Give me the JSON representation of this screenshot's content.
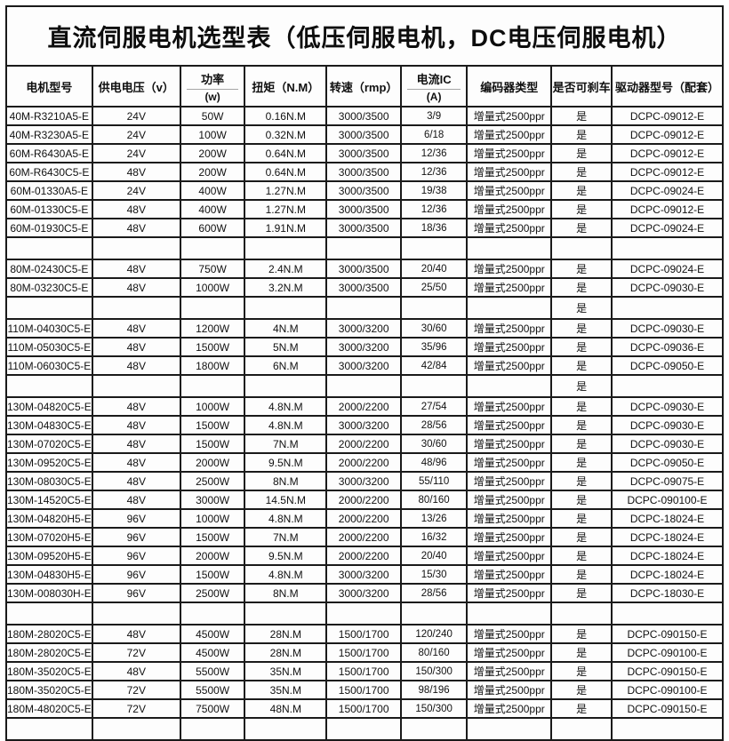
{
  "title": "直流伺服电机选型表（低压伺服电机，DC电压伺服电机）",
  "colors": {
    "border": "#1a1a1a",
    "background": "#fdfdfd",
    "text": "#141414",
    "header_divider": "#a6a6a6"
  },
  "table": {
    "columns": [
      {
        "key": "model",
        "label": "电机型号",
        "sub": null
      },
      {
        "key": "voltage",
        "label": "供电电压（v）",
        "sub": null
      },
      {
        "key": "power",
        "label": "功率",
        "sub": "(w)"
      },
      {
        "key": "torque",
        "label": "扭矩（N.M）",
        "sub": null
      },
      {
        "key": "speed",
        "label": "转速（rmp）",
        "sub": null
      },
      {
        "key": "current",
        "label": "电流IC",
        "sub": "(A)"
      },
      {
        "key": "encoder",
        "label": "编码器类型",
        "sub": null
      },
      {
        "key": "brake",
        "label": "是否可刹车",
        "sub": null
      },
      {
        "key": "driver",
        "label": "驱动器型号（配套）",
        "sub": null
      }
    ],
    "rows": [
      [
        "40M-R3210A5-E",
        "24V",
        "50W",
        "0.16N.M",
        "3000/3500",
        "3/9",
        "增量式2500ppr",
        "是",
        "DCPC-09012-E"
      ],
      [
        "40M-R3230A5-E",
        "24V",
        "100W",
        "0.32N.M",
        "3000/3500",
        "6/18",
        "增量式2500ppr",
        "是",
        "DCPC-09012-E"
      ],
      [
        "60M-R6430A5-E",
        "24V",
        "200W",
        "0.64N.M",
        "3000/3500",
        "12/36",
        "增量式2500ppr",
        "是",
        "DCPC-09012-E"
      ],
      [
        "60M-R6430C5-E",
        "48V",
        "200W",
        "0.64N.M",
        "3000/3500",
        "12/36",
        "增量式2500ppr",
        "是",
        "DCPC-09012-E"
      ],
      [
        "60M-01330A5-E",
        "24V",
        "400W",
        "1.27N.M",
        "3000/3500",
        "19/38",
        "增量式2500ppr",
        "是",
        "DCPC-09024-E"
      ],
      [
        "60M-01330C5-E",
        "48V",
        "400W",
        "1.27N.M",
        "3000/3500",
        "12/36",
        "增量式2500ppr",
        "是",
        "DCPC-09012-E"
      ],
      [
        "60M-01930C5-E",
        "48V",
        "600W",
        "1.91N.M",
        "3000/3500",
        "18/36",
        "增量式2500ppr",
        "是",
        "DCPC-09024-E"
      ],
      [
        "",
        "",
        "",
        "",
        "",
        "",
        "",
        "",
        ""
      ],
      [
        "80M-02430C5-E",
        "48V",
        "750W",
        "2.4N.M",
        "3000/3500",
        "20/40",
        "增量式2500ppr",
        "是",
        "DCPC-09024-E"
      ],
      [
        "80M-03230C5-E",
        "48V",
        "1000W",
        "3.2N.M",
        "3000/3500",
        "25/50",
        "增量式2500ppr",
        "是",
        "DCPC-09030-E"
      ],
      [
        "",
        "",
        "",
        "",
        "",
        "",
        "",
        "是",
        ""
      ],
      [
        "110M-04030C5-E",
        "48V",
        "1200W",
        "4N.M",
        "3000/3200",
        "30/60",
        "增量式2500ppr",
        "是",
        "DCPC-09030-E"
      ],
      [
        "110M-05030C5-E",
        "48V",
        "1500W",
        "5N.M",
        "3000/3200",
        "35/96",
        "增量式2500ppr",
        "是",
        "DCPC-09036-E"
      ],
      [
        "110M-06030C5-E",
        "48V",
        "1800W",
        "6N.M",
        "3000/3200",
        "42/84",
        "增量式2500ppr",
        "是",
        "DCPC-09050-E"
      ],
      [
        "",
        "",
        "",
        "",
        "",
        "",
        "",
        "是",
        ""
      ],
      [
        "130M-04820C5-E",
        "48V",
        "1000W",
        "4.8N.M",
        "2000/2200",
        "27/54",
        "增量式2500ppr",
        "是",
        "DCPC-09030-E"
      ],
      [
        "130M-04830C5-E",
        "48V",
        "1500W",
        "4.8N.M",
        "3000/3200",
        "28/56",
        "增量式2500ppr",
        "是",
        "DCPC-09030-E"
      ],
      [
        "130M-07020C5-E",
        "48V",
        "1500W",
        "7N.M",
        "2000/2200",
        "30/60",
        "增量式2500ppr",
        "是",
        "DCPC-09030-E"
      ],
      [
        "130M-09520C5-E",
        "48V",
        "2000W",
        "9.5N.M",
        "2000/2200",
        "48/96",
        "增量式2500ppr",
        "是",
        "DCPC-09050-E"
      ],
      [
        "130M-08030C5-E",
        "48V",
        "2500W",
        "8N.M",
        "3000/3200",
        "55/110",
        "增量式2500ppr",
        "是",
        "DCPC-09075-E"
      ],
      [
        "130M-14520C5-E",
        "48V",
        "3000W",
        "14.5N.M",
        "2000/2200",
        "80/160",
        "增量式2500ppr",
        "是",
        "DCPC-090100-E"
      ],
      [
        "130M-04820H5-E",
        "96V",
        "1000W",
        "4.8N.M",
        "2000/2200",
        "13/26",
        "增量式2500ppr",
        "是",
        "DCPC-18024-E"
      ],
      [
        "130M-07020H5-E",
        "96V",
        "1500W",
        "7N.M",
        "2000/2200",
        "16/32",
        "增量式2500ppr",
        "是",
        "DCPC-18024-E"
      ],
      [
        "130M-09520H5-E",
        "96V",
        "2000W",
        "9.5N.M",
        "2000/2200",
        "20/40",
        "增量式2500ppr",
        "是",
        "DCPC-18024-E"
      ],
      [
        "130M-04830H5-E",
        "96V",
        "1500W",
        "4.8N.M",
        "3000/3200",
        "15/30",
        "增量式2500ppr",
        "是",
        "DCPC-18024-E"
      ],
      [
        "130M-008030H-E",
        "96V",
        "2500W",
        "8N.M",
        "3000/3200",
        "28/56",
        "增量式2500ppr",
        "是",
        "DCPC-18030-E"
      ],
      [
        "",
        "",
        "",
        "",
        "",
        "",
        "",
        "",
        ""
      ],
      [
        "180M-28020C5-E",
        "48V",
        "4500W",
        "28N.M",
        "1500/1700",
        "120/240",
        "增量式2500ppr",
        "是",
        "DCPC-090150-E"
      ],
      [
        "180M-28020C5-E",
        "72V",
        "4500W",
        "28N.M",
        "1500/1700",
        "80/160",
        "增量式2500ppr",
        "是",
        "DCPC-090100-E"
      ],
      [
        "180M-35020C5-E",
        "48V",
        "5500W",
        "35N.M",
        "1500/1700",
        "150/300",
        "增量式2500ppr",
        "是",
        "DCPC-090150-E"
      ],
      [
        "180M-35020C5-E",
        "72V",
        "5500W",
        "35N.M",
        "1500/1700",
        "98/196",
        "增量式2500ppr",
        "是",
        "DCPC-090100-E"
      ],
      [
        "180M-48020C5-E",
        "72V",
        "7500W",
        "48N.M",
        "1500/1700",
        "150/300",
        "增量式2500ppr",
        "是",
        "DCPC-090150-E"
      ],
      [
        "",
        "",
        "",
        "",
        "",
        "",
        "",
        "",
        ""
      ]
    ]
  }
}
